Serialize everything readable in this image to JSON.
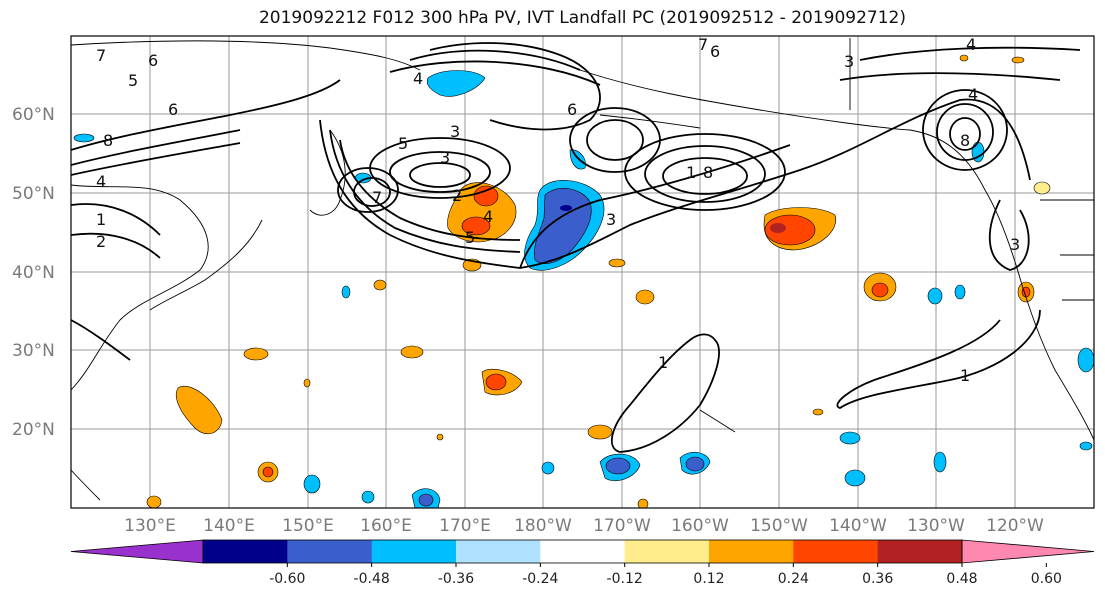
{
  "title": "2019092212 F012 300 hPa PV, IVT Landfall PC (2019092512 - 2019092712)",
  "map": {
    "lat_labels": [
      "60°N",
      "50°N",
      "40°N",
      "30°N",
      "20°N"
    ],
    "lon_labels": [
      "130°E",
      "140°E",
      "150°E",
      "160°E",
      "170°E",
      "180°W",
      "170°W",
      "160°W",
      "150°W",
      "140°W",
      "130°W",
      "120°W"
    ],
    "contour_labels": [
      "7",
      "5",
      "6",
      "8",
      "4",
      "1",
      "2",
      "6",
      "4",
      "5",
      "3",
      "2",
      "4",
      "5",
      "3",
      "3",
      "6",
      "1",
      "8",
      "7",
      "3",
      "4",
      "8",
      "1",
      "1",
      "6",
      "7",
      "3",
      "4"
    ]
  },
  "colorbar": {
    "labels": [
      "-0.60",
      "-0.48",
      "-0.36",
      "-0.24",
      "-0.12",
      "0.12",
      "0.24",
      "0.36",
      "0.48",
      "0.60"
    ],
    "colors": [
      "#9932cc",
      "#00008b",
      "#3a5fcd",
      "#00bfff",
      "#b0e2ff",
      "#ffffff",
      "#ffec8b",
      "#ffa500",
      "#ff4500",
      "#b22222",
      "#ff88b0"
    ]
  }
}
